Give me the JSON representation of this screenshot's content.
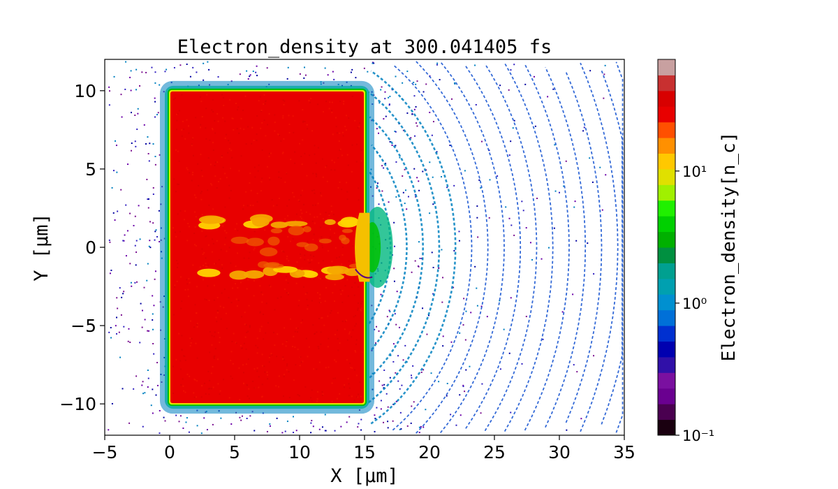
{
  "chart_data": {
    "type": "heatmap",
    "title": "Electron_density at 300.041405 fs",
    "xlabel": "X [μm]",
    "ylabel": "Y [μm]",
    "xlim": [
      -5,
      35
    ],
    "ylim": [
      -12,
      12
    ],
    "x_ticks": [
      -5,
      0,
      5,
      10,
      15,
      20,
      25,
      30,
      35
    ],
    "x_tick_labels": [
      "−5",
      "0",
      "5",
      "10",
      "15",
      "20",
      "25",
      "30",
      "35"
    ],
    "y_ticks": [
      -10,
      -5,
      0,
      5,
      10
    ],
    "y_tick_labels": [
      "−10",
      "−5",
      "0",
      "5",
      "10"
    ],
    "colorbar": {
      "label": "Electron_density[n_c]",
      "scale": "log",
      "range": [
        0.1,
        70
      ],
      "ticks": [
        0.1,
        1,
        10
      ],
      "tick_labels": [
        "10⁻¹",
        "10⁰",
        "10¹"
      ],
      "colormap": "nipy_spectral",
      "levels": 20
    },
    "target": {
      "x_range": [
        0,
        15
      ],
      "y_range": [
        -10,
        10
      ],
      "density": 40,
      "channel_x_range": [
        3,
        15
      ],
      "channel_y_half_width": 1.8
    },
    "colors": {
      "target": "#e80000",
      "channel": "#f5a800",
      "surface": "#00c000",
      "halo": "#0080c0",
      "debris": "#6a00a8",
      "wavefront": "#1050d0"
    }
  }
}
